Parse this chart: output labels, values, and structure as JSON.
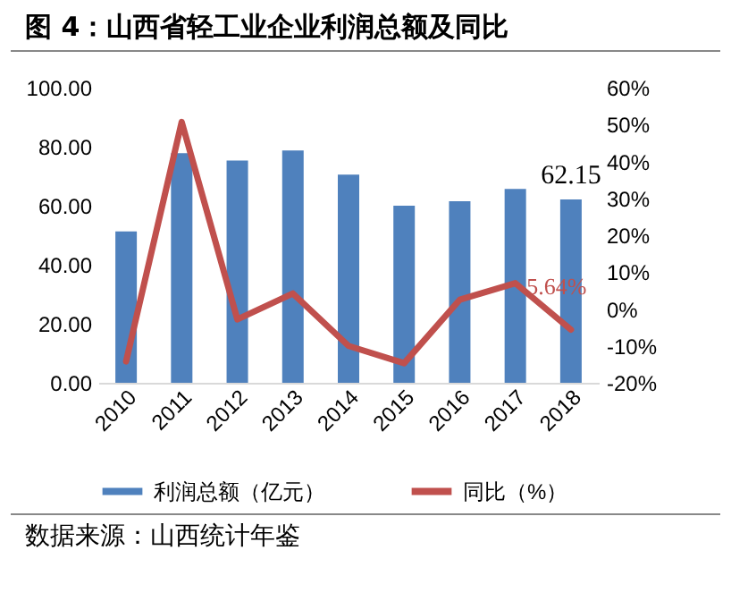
{
  "chart_data": {
    "type": "bar",
    "title": "图 4：山西省轻工业企业利润总额及同比",
    "categories": [
      "2010",
      "2011",
      "2012",
      "2013",
      "2014",
      "2015",
      "2016",
      "2017",
      "2018"
    ],
    "series": [
      {
        "name": "利润总额（亿元）",
        "color": "#4f81bd",
        "values": [
          51.3,
          77.8,
          75.3,
          78.7,
          70.5,
          60.0,
          61.5,
          65.7,
          62.15
        ],
        "value_labels": [
          null,
          null,
          null,
          null,
          null,
          null,
          null,
          null,
          "62.15"
        ]
      },
      {
        "name": "同比（%）",
        "type": "line",
        "axis": "y2",
        "color": "#c0504d",
        "values": [
          -14.2,
          50.7,
          -2.8,
          4.2,
          -10.0,
          -14.7,
          2.5,
          7.0,
          -5.6
        ]
      }
    ],
    "ylim": [
      0,
      100
    ],
    "yticks": [
      {
        "value": 0,
        "label": "0.00"
      },
      {
        "value": 20,
        "label": "20.00"
      },
      {
        "value": 40,
        "label": "40.00"
      },
      {
        "value": 60,
        "label": "60.00"
      },
      {
        "value": 80,
        "label": "80.00"
      },
      {
        "value": 100,
        "label": "100.00"
      }
    ],
    "y2lim": [
      -20,
      60
    ],
    "y2ticks": [
      {
        "value": -20,
        "label": "-20%"
      },
      {
        "value": -10,
        "label": "-10%"
      },
      {
        "value": 0,
        "label": "0%"
      },
      {
        "value": 10,
        "label": "10%"
      },
      {
        "value": 20,
        "label": "20%"
      },
      {
        "value": 30,
        "label": "30%"
      },
      {
        "value": 40,
        "label": "40%"
      },
      {
        "value": 50,
        "label": "50%"
      },
      {
        "value": 60,
        "label": "60%"
      }
    ],
    "grid": false,
    "legend": "bottom",
    "annotations": [
      "5.64%",
      "数据来源：山西统计年鉴"
    ]
  }
}
